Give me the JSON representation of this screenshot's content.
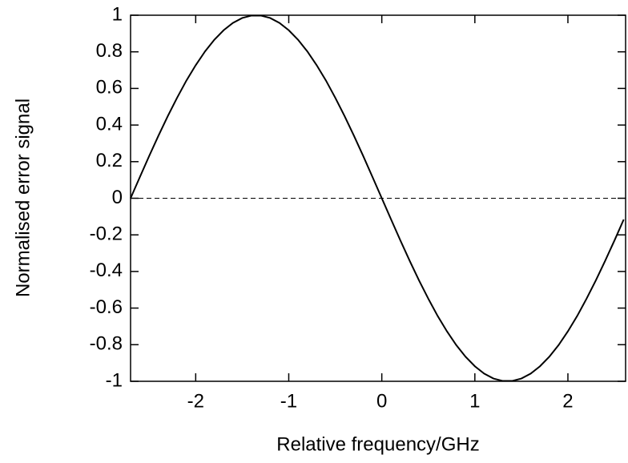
{
  "chart_data": {
    "type": "line",
    "xlabel": "Relative frequency/GHz",
    "ylabel": "Normalised error signal",
    "x": [
      -2.7,
      -2.6,
      -2.5,
      -2.4,
      -2.3,
      -2.2,
      -2.1,
      -2.0,
      -1.9,
      -1.8,
      -1.7,
      -1.6,
      -1.5,
      -1.4,
      -1.3,
      -1.2,
      -1.1,
      -1.0,
      -0.9,
      -0.8,
      -0.7,
      -0.6,
      -0.5,
      -0.4,
      -0.3,
      -0.2,
      -0.1,
      0.0,
      0.1,
      0.2,
      0.3,
      0.4,
      0.5,
      0.6,
      0.7,
      0.8,
      0.9,
      1.0,
      1.1,
      1.2,
      1.3,
      1.4,
      1.5,
      1.6,
      1.7,
      1.8,
      1.9,
      2.0,
      2.1,
      2.2,
      2.3,
      2.4,
      2.5,
      2.6
    ],
    "series": [
      {
        "color": "#000000",
        "values": [
          0,
          0.116,
          0.231,
          0.342,
          0.449,
          0.549,
          0.643,
          0.727,
          0.802,
          0.866,
          0.918,
          0.958,
          0.985,
          0.998,
          0.998,
          0.985,
          0.958,
          0.918,
          0.866,
          0.802,
          0.727,
          0.643,
          0.549,
          0.449,
          0.342,
          0.231,
          0.116,
          0,
          -0.116,
          -0.231,
          -0.342,
          -0.449,
          -0.549,
          -0.643,
          -0.727,
          -0.802,
          -0.866,
          -0.918,
          -0.958,
          -0.985,
          -0.998,
          -0.998,
          -0.985,
          -0.958,
          -0.918,
          -0.866,
          -0.802,
          -0.727,
          -0.643,
          -0.549,
          -0.449,
          -0.342,
          -0.231,
          -0.116
        ]
      }
    ],
    "hlines": [
      0
    ],
    "xlim": [
      -2.7,
      2.62
    ],
    "ylim": [
      -1,
      1
    ],
    "xticks": [
      -2,
      -1,
      0,
      1,
      2
    ],
    "yticks": [
      -1,
      -0.8,
      -0.6,
      -0.4,
      -0.2,
      0,
      0.2,
      0.4,
      0.6,
      0.8,
      1
    ]
  }
}
